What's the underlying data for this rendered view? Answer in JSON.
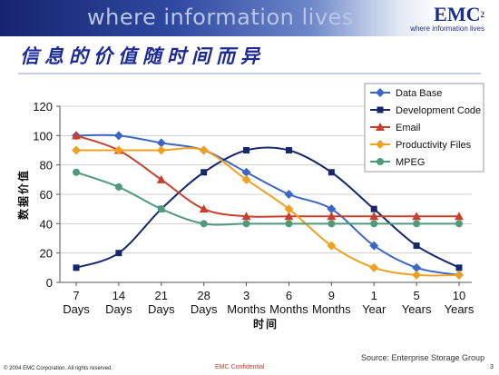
{
  "header": {
    "tagline": "where information lives",
    "logo_text": "EMC",
    "logo_sup": "2",
    "logo_tagline": "where information lives"
  },
  "slide": {
    "title": "信息的价值随时间而异",
    "source": "Source: Enterprise Storage Group"
  },
  "footer": {
    "copyright": "© 2004 EMC Corporation. All rights reserved.",
    "confidential": "EMC Confidential",
    "page_number": "3"
  },
  "colors": {
    "data_base": "#3b67c4",
    "development_code": "#14286b",
    "email": "#c8402c",
    "productivity_files": "#f0a020",
    "mpeg": "#4f9a7a"
  },
  "chart_data": {
    "type": "line",
    "title": "",
    "xlabel": "时间",
    "ylabel": "数据价值",
    "ylim": [
      0,
      120
    ],
    "yticks": [
      0,
      20,
      40,
      60,
      80,
      100,
      120
    ],
    "grid": true,
    "legend_position": "top-right",
    "categories": [
      [
        "7",
        "Days"
      ],
      [
        "14",
        "Days"
      ],
      [
        "21",
        "Days"
      ],
      [
        "28",
        "Days"
      ],
      [
        "3",
        "Months"
      ],
      [
        "6",
        "Months"
      ],
      [
        "9",
        "Months"
      ],
      [
        "1",
        "Year"
      ],
      [
        "5",
        "Years"
      ],
      [
        "10",
        "Years"
      ]
    ],
    "series": [
      {
        "name": "Data Base",
        "color": "#3b67c4",
        "marker": "diamond",
        "values": [
          100,
          100,
          95,
          90,
          75,
          60,
          50,
          25,
          10,
          5
        ]
      },
      {
        "name": "Development Code",
        "color": "#14286b",
        "marker": "square",
        "values": [
          10,
          20,
          50,
          75,
          90,
          90,
          75,
          50,
          25,
          10
        ]
      },
      {
        "name": "Email",
        "color": "#c8402c",
        "marker": "triangle",
        "values": [
          100,
          90,
          70,
          50,
          45,
          45,
          45,
          45,
          45,
          45
        ]
      },
      {
        "name": "Productivity Files",
        "color": "#f0a020",
        "marker": "diamond",
        "values": [
          90,
          90,
          90,
          90,
          70,
          50,
          25,
          10,
          5,
          5
        ]
      },
      {
        "name": "MPEG",
        "color": "#4f9a7a",
        "marker": "circle",
        "values": [
          75,
          65,
          50,
          40,
          40,
          40,
          40,
          40,
          40,
          40
        ]
      }
    ]
  }
}
